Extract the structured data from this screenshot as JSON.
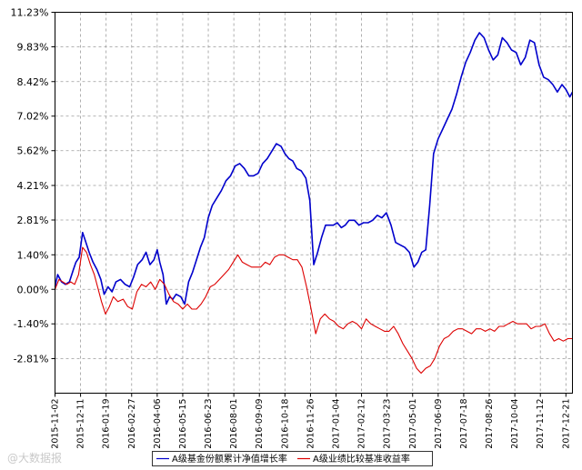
{
  "chart_data": {
    "type": "line",
    "title": "",
    "xlabel": "",
    "ylabel": "",
    "ylim": [
      -4.21,
      11.23
    ],
    "y_ticks": [
      "11.23%",
      "9.83%",
      "8.42%",
      "7.02%",
      "5.62%",
      "4.21%",
      "2.81%",
      "1.40%",
      "0.00%",
      "-1.40%",
      "-2.81%"
    ],
    "x_ticks": [
      "2015-11-02",
      "2015-12-11",
      "2016-01-19",
      "2016-02-27",
      "2016-04-06",
      "2016-05-15",
      "2016-06-23",
      "2016-08-01",
      "2016-09-09",
      "2016-10-18",
      "2016-11-26",
      "2017-01-04",
      "2017-02-12",
      "2017-03-23",
      "2017-05-01",
      "2017-06-09",
      "2017-07-18",
      "2017-08-26",
      "2017-10-04",
      "2017-11-12",
      "2017-12-21"
    ],
    "grid": true,
    "legend_position": "bottom",
    "series": [
      {
        "name": "A级基金份额累计净值增长率",
        "color": "#0000cc",
        "x": [
          "2015-11-02",
          "2015-11-06",
          "2015-11-12",
          "2015-11-18",
          "2015-11-24",
          "2015-11-30",
          "2015-12-04",
          "2015-12-09",
          "2015-12-14",
          "2015-12-18",
          "2015-12-24",
          "2015-12-30",
          "2016-01-05",
          "2016-01-11",
          "2016-01-16",
          "2016-01-22",
          "2016-01-28",
          "2016-02-03",
          "2016-02-10",
          "2016-02-17",
          "2016-02-24",
          "2016-03-01",
          "2016-03-07",
          "2016-03-14",
          "2016-03-20",
          "2016-03-26",
          "2016-04-01",
          "2016-04-06",
          "2016-04-10",
          "2016-04-15",
          "2016-04-20",
          "2016-04-25",
          "2016-04-30",
          "2016-05-05",
          "2016-05-12",
          "2016-05-18",
          "2016-05-24",
          "2016-05-30",
          "2016-06-05",
          "2016-06-11",
          "2016-06-17",
          "2016-06-23",
          "2016-06-29",
          "2016-07-06",
          "2016-07-13",
          "2016-07-20",
          "2016-07-27",
          "2016-08-03",
          "2016-08-10",
          "2016-08-17",
          "2016-08-24",
          "2016-08-31",
          "2016-09-07",
          "2016-09-14",
          "2016-09-21",
          "2016-09-28",
          "2016-10-05",
          "2016-10-12",
          "2016-10-18",
          "2016-10-24",
          "2016-10-30",
          "2016-11-05",
          "2016-11-12",
          "2016-11-19",
          "2016-11-25",
          "2016-12-01",
          "2016-12-07",
          "2016-12-13",
          "2016-12-19",
          "2016-12-25",
          "2016-12-31",
          "2017-01-06",
          "2017-01-12",
          "2017-01-18",
          "2017-01-24",
          "2017-02-01",
          "2017-02-08",
          "2017-02-15",
          "2017-02-22",
          "2017-03-01",
          "2017-03-08",
          "2017-03-15",
          "2017-03-22",
          "2017-03-29",
          "2017-04-05",
          "2017-04-12",
          "2017-04-19",
          "2017-04-26",
          "2017-05-03",
          "2017-05-09",
          "2017-05-15",
          "2017-05-21",
          "2017-05-27",
          "2017-06-02",
          "2017-06-09",
          "2017-06-16",
          "2017-06-23",
          "2017-06-30",
          "2017-07-07",
          "2017-07-14",
          "2017-07-21",
          "2017-07-28",
          "2017-08-04",
          "2017-08-11",
          "2017-08-18",
          "2017-08-25",
          "2017-09-01",
          "2017-09-08",
          "2017-09-15",
          "2017-09-22",
          "2017-09-29",
          "2017-10-06",
          "2017-10-13",
          "2017-10-20",
          "2017-10-27",
          "2017-11-03",
          "2017-11-10",
          "2017-11-17",
          "2017-11-24",
          "2017-12-01",
          "2017-12-08",
          "2017-12-15",
          "2017-12-21",
          "2017-12-27",
          "2017-12-31"
        ],
        "values": [
          0.1,
          0.6,
          0.3,
          0.2,
          0.3,
          0.8,
          1.1,
          1.3,
          2.3,
          2.0,
          1.5,
          1.1,
          0.8,
          0.4,
          -0.2,
          0.1,
          -0.1,
          0.3,
          0.4,
          0.2,
          0.1,
          0.5,
          1.0,
          1.2,
          1.5,
          1.0,
          1.2,
          1.6,
          1.1,
          0.6,
          -0.6,
          -0.3,
          -0.4,
          -0.2,
          -0.3,
          -0.6,
          0.3,
          0.7,
          1.2,
          1.7,
          2.1,
          2.9,
          3.4,
          3.7,
          4.0,
          4.4,
          4.6,
          5.0,
          5.1,
          4.9,
          4.6,
          4.6,
          4.7,
          5.1,
          5.3,
          5.6,
          5.9,
          5.8,
          5.5,
          5.3,
          5.2,
          4.9,
          4.8,
          4.5,
          3.6,
          1.0,
          1.5,
          2.1,
          2.6,
          2.6,
          2.6,
          2.7,
          2.5,
          2.6,
          2.8,
          2.8,
          2.6,
          2.7,
          2.7,
          2.8,
          3.0,
          2.9,
          3.1,
          2.6,
          1.9,
          1.8,
          1.7,
          1.5,
          0.9,
          1.1,
          1.5,
          1.6,
          3.4,
          5.5,
          6.1,
          6.5,
          6.9,
          7.3,
          7.9,
          8.6,
          9.2,
          9.6,
          10.1,
          10.4,
          10.2,
          9.7,
          9.3,
          9.5,
          10.2,
          10.0,
          9.7,
          9.6,
          9.1,
          9.4,
          10.1,
          10.0,
          9.1,
          8.6,
          8.5,
          8.3,
          8.0,
          8.3,
          8.1,
          7.8,
          8.0
        ]
      },
      {
        "name": "A级业绩比较基准收益率",
        "color": "#dd0000",
        "x": [
          "2015-11-02",
          "2015-11-08",
          "2015-11-14",
          "2015-11-20",
          "2015-11-26",
          "2015-12-02",
          "2015-12-08",
          "2015-12-14",
          "2015-12-20",
          "2015-12-26",
          "2016-01-01",
          "2016-01-06",
          "2016-01-12",
          "2016-01-18",
          "2016-01-24",
          "2016-01-30",
          "2016-02-06",
          "2016-02-14",
          "2016-02-21",
          "2016-02-28",
          "2016-03-06",
          "2016-03-13",
          "2016-03-20",
          "2016-03-27",
          "2016-04-03",
          "2016-04-10",
          "2016-04-17",
          "2016-04-24",
          "2016-05-01",
          "2016-05-08",
          "2016-05-15",
          "2016-05-22",
          "2016-05-29",
          "2016-06-05",
          "2016-06-12",
          "2016-06-19",
          "2016-06-26",
          "2016-07-03",
          "2016-07-10",
          "2016-07-17",
          "2016-07-24",
          "2016-07-31",
          "2016-08-07",
          "2016-08-14",
          "2016-08-21",
          "2016-08-28",
          "2016-09-04",
          "2016-09-11",
          "2016-09-18",
          "2016-09-25",
          "2016-10-02",
          "2016-10-09",
          "2016-10-16",
          "2016-10-23",
          "2016-10-30",
          "2016-11-06",
          "2016-11-13",
          "2016-11-20",
          "2016-11-27",
          "2016-12-04",
          "2016-12-11",
          "2016-12-18",
          "2016-12-25",
          "2017-01-01",
          "2017-01-08",
          "2017-01-15",
          "2017-01-22",
          "2017-01-29",
          "2017-02-05",
          "2017-02-12",
          "2017-02-19",
          "2017-02-26",
          "2017-03-05",
          "2017-03-12",
          "2017-03-19",
          "2017-03-26",
          "2017-04-02",
          "2017-04-09",
          "2017-04-16",
          "2017-04-23",
          "2017-04-30",
          "2017-05-07",
          "2017-05-14",
          "2017-05-21",
          "2017-05-28",
          "2017-06-04",
          "2017-06-11",
          "2017-06-18",
          "2017-06-25",
          "2017-07-02",
          "2017-07-09",
          "2017-07-16",
          "2017-07-23",
          "2017-07-30",
          "2017-08-06",
          "2017-08-13",
          "2017-08-20",
          "2017-08-27",
          "2017-09-03",
          "2017-09-10",
          "2017-09-17",
          "2017-09-24",
          "2017-10-01",
          "2017-10-08",
          "2017-10-15",
          "2017-10-22",
          "2017-10-29",
          "2017-11-05",
          "2017-11-12",
          "2017-11-19",
          "2017-11-26",
          "2017-12-03",
          "2017-12-10",
          "2017-12-17",
          "2017-12-24",
          "2017-12-31"
        ],
        "values": [
          0.0,
          0.4,
          0.3,
          0.2,
          0.3,
          0.2,
          0.6,
          1.7,
          1.5,
          1.0,
          0.6,
          0.1,
          -0.5,
          -1.0,
          -0.7,
          -0.3,
          -0.5,
          -0.4,
          -0.7,
          -0.8,
          -0.1,
          0.2,
          0.1,
          0.3,
          0.0,
          0.4,
          0.2,
          -0.2,
          -0.5,
          -0.6,
          -0.8,
          -0.6,
          -0.8,
          -0.8,
          -0.6,
          -0.3,
          0.1,
          0.2,
          0.4,
          0.6,
          0.8,
          1.1,
          1.4,
          1.1,
          1.0,
          0.9,
          0.9,
          0.9,
          1.1,
          1.0,
          1.3,
          1.4,
          1.4,
          1.3,
          1.2,
          1.2,
          0.9,
          0.1,
          -0.8,
          -1.8,
          -1.2,
          -1.0,
          -1.2,
          -1.3,
          -1.5,
          -1.6,
          -1.4,
          -1.3,
          -1.4,
          -1.6,
          -1.2,
          -1.4,
          -1.5,
          -1.6,
          -1.7,
          -1.7,
          -1.5,
          -1.8,
          -2.2,
          -2.5,
          -2.8,
          -3.2,
          -3.4,
          -3.2,
          -3.1,
          -2.8,
          -2.3,
          -2.0,
          -1.9,
          -1.7,
          -1.6,
          -1.6,
          -1.7,
          -1.8,
          -1.6,
          -1.6,
          -1.7,
          -1.6,
          -1.7,
          -1.5,
          -1.5,
          -1.4,
          -1.3,
          -1.4,
          -1.4,
          -1.4,
          -1.6,
          -1.5,
          -1.5,
          -1.4,
          -1.8,
          -2.1,
          -2.0,
          -2.1,
          -2.0,
          -2.0
        ]
      }
    ]
  },
  "watermark": "@大数据报"
}
